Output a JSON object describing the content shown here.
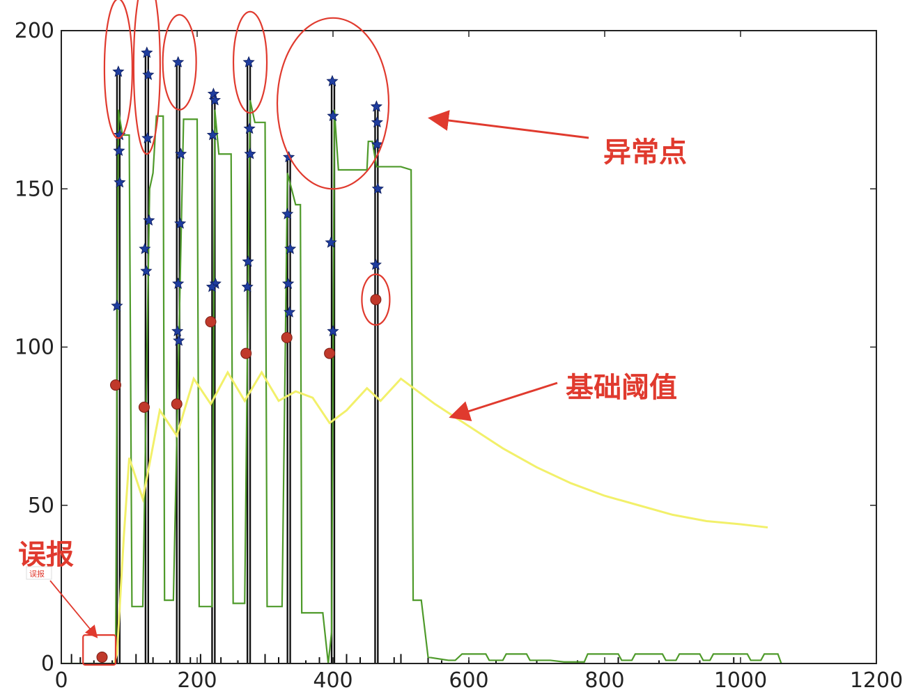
{
  "chart_data": {
    "type": "line",
    "xlim": [
      0,
      1200
    ],
    "ylim": [
      0,
      200
    ],
    "x_ticks": [
      0,
      200,
      400,
      600,
      800,
      1000,
      1200
    ],
    "y_ticks": [
      0,
      50,
      100,
      150,
      200
    ],
    "grid": false,
    "series": [
      {
        "color": "#111111",
        "style": "spikes",
        "segments": [
          [
            [
              82,
              0
            ],
            [
              82,
              187
            ],
            [
              86,
              187
            ],
            [
              86,
              0
            ]
          ],
          [
            [
              124,
              0
            ],
            [
              124,
              193
            ],
            [
              128,
              193
            ],
            [
              128,
              0
            ]
          ],
          [
            [
              170,
              0
            ],
            [
              170,
              190
            ],
            [
              174,
              190
            ],
            [
              174,
              0
            ]
          ],
          [
            [
              222,
              0
            ],
            [
              222,
              180
            ],
            [
              226,
              180
            ],
            [
              226,
              0
            ]
          ],
          [
            [
              274,
              0
            ],
            [
              274,
              190
            ],
            [
              278,
              190
            ],
            [
              278,
              0
            ]
          ],
          [
            [
              333,
              0
            ],
            [
              333,
              160
            ],
            [
              337,
              160
            ],
            [
              337,
              0
            ]
          ],
          [
            [
              398,
              0
            ],
            [
              398,
              184
            ],
            [
              402,
              184
            ],
            [
              402,
              0
            ]
          ],
          [
            [
              462,
              0
            ],
            [
              462,
              176
            ],
            [
              466,
              176
            ],
            [
              466,
              0
            ]
          ]
        ],
        "noise_x": [
          15,
          28,
          48,
          60,
          75,
          110,
          135,
          160,
          190,
          205,
          235,
          260,
          300,
          320,
          360,
          380,
          420,
          440,
          490,
          500,
          540,
          560,
          600,
          640,
          700,
          760,
          820,
          880,
          940,
          990
        ],
        "noise_y": [
          3,
          2,
          1,
          2,
          1,
          3,
          2,
          1,
          2,
          3,
          2,
          1,
          3,
          2,
          1,
          2,
          3,
          2,
          2,
          3,
          2,
          1,
          1,
          1,
          1,
          1,
          2,
          1,
          1,
          2
        ]
      },
      {
        "color": "#4e9a2a",
        "style": "line",
        "points": [
          [
            0,
            0
          ],
          [
            78,
            0
          ],
          [
            80,
            2
          ],
          [
            84,
            175
          ],
          [
            90,
            167
          ],
          [
            100,
            167
          ],
          [
            104,
            18
          ],
          [
            120,
            18
          ],
          [
            130,
            150
          ],
          [
            135,
            155
          ],
          [
            140,
            173
          ],
          [
            150,
            173
          ],
          [
            152,
            20
          ],
          [
            165,
            20
          ],
          [
            180,
            172
          ],
          [
            200,
            172
          ],
          [
            203,
            18
          ],
          [
            222,
            18
          ],
          [
            226,
            175
          ],
          [
            232,
            161
          ],
          [
            250,
            161
          ],
          [
            253,
            19
          ],
          [
            270,
            19
          ],
          [
            278,
            178
          ],
          [
            285,
            171
          ],
          [
            300,
            171
          ],
          [
            303,
            18
          ],
          [
            325,
            18
          ],
          [
            333,
            155
          ],
          [
            345,
            145
          ],
          [
            352,
            145
          ],
          [
            354,
            16
          ],
          [
            385,
            16
          ],
          [
            393,
            0
          ],
          [
            398,
            10
          ],
          [
            402,
            175
          ],
          [
            408,
            156
          ],
          [
            450,
            156
          ],
          [
            452,
            165
          ],
          [
            458,
            165
          ],
          [
            464,
            157
          ],
          [
            470,
            157
          ],
          [
            500,
            157
          ],
          [
            515,
            156
          ],
          [
            518,
            20
          ],
          [
            530,
            20
          ],
          [
            540,
            2
          ],
          [
            570,
            1
          ],
          [
            580,
            1
          ],
          [
            590,
            3
          ],
          [
            625,
            3
          ],
          [
            630,
            1
          ],
          [
            650,
            1
          ],
          [
            655,
            3
          ],
          [
            685,
            3
          ],
          [
            690,
            1
          ],
          [
            720,
            1
          ],
          [
            740,
            0.5
          ],
          [
            770,
            0.5
          ],
          [
            775,
            3
          ],
          [
            820,
            3
          ],
          [
            825,
            1
          ],
          [
            840,
            1
          ],
          [
            845,
            3
          ],
          [
            885,
            3
          ],
          [
            890,
            1
          ],
          [
            905,
            1
          ],
          [
            910,
            3
          ],
          [
            940,
            3
          ],
          [
            945,
            1
          ],
          [
            955,
            1
          ],
          [
            960,
            3
          ],
          [
            1010,
            3
          ],
          [
            1015,
            1
          ],
          [
            1030,
            1
          ],
          [
            1035,
            3
          ],
          [
            1055,
            3
          ],
          [
            1060,
            0
          ]
        ]
      },
      {
        "color": "#f2f06a",
        "style": "line",
        "points": [
          [
            78,
            0
          ],
          [
            82,
            3
          ],
          [
            92,
            40
          ],
          [
            100,
            65
          ],
          [
            120,
            52
          ],
          [
            145,
            80
          ],
          [
            170,
            72
          ],
          [
            195,
            90
          ],
          [
            220,
            82
          ],
          [
            245,
            92
          ],
          [
            270,
            83
          ],
          [
            295,
            92
          ],
          [
            320,
            83
          ],
          [
            345,
            86
          ],
          [
            370,
            84
          ],
          [
            395,
            76
          ],
          [
            420,
            80
          ],
          [
            450,
            87
          ],
          [
            470,
            83
          ],
          [
            500,
            90
          ],
          [
            550,
            82
          ],
          [
            600,
            75
          ],
          [
            650,
            68
          ],
          [
            700,
            62
          ],
          [
            750,
            57
          ],
          [
            800,
            53
          ],
          [
            850,
            50
          ],
          [
            900,
            47
          ],
          [
            950,
            45
          ],
          [
            1000,
            44
          ],
          [
            1040,
            43
          ]
        ]
      }
    ],
    "star_markers": {
      "color": "#1f3d9e",
      "points": [
        [
          84,
          187
        ],
        [
          86,
          167
        ],
        [
          85,
          162
        ],
        [
          86,
          152
        ],
        [
          82,
          113
        ],
        [
          126,
          193
        ],
        [
          128,
          186
        ],
        [
          127,
          166
        ],
        [
          129,
          140
        ],
        [
          123,
          131
        ],
        [
          125,
          124
        ],
        [
          172,
          190
        ],
        [
          176,
          161
        ],
        [
          175,
          139
        ],
        [
          172,
          120
        ],
        [
          171,
          105
        ],
        [
          173,
          102
        ],
        [
          224,
          180
        ],
        [
          226,
          178
        ],
        [
          223,
          167
        ],
        [
          227,
          120
        ],
        [
          222,
          119
        ],
        [
          276,
          190
        ],
        [
          277,
          169
        ],
        [
          278,
          161
        ],
        [
          275,
          127
        ],
        [
          274,
          119
        ],
        [
          335,
          160
        ],
        [
          333,
          142
        ],
        [
          337,
          131
        ],
        [
          334,
          120
        ],
        [
          336,
          111
        ],
        [
          399,
          184
        ],
        [
          400,
          173
        ],
        [
          397,
          133
        ],
        [
          400,
          105
        ],
        [
          464,
          176
        ],
        [
          465,
          171
        ],
        [
          465,
          164
        ],
        [
          466,
          150
        ],
        [
          463,
          126
        ]
      ]
    },
    "circle_markers": {
      "color": "#c0392b",
      "points": [
        [
          60,
          2
        ],
        [
          80,
          88
        ],
        [
          122,
          81
        ],
        [
          170,
          82
        ],
        [
          220,
          108
        ],
        [
          272,
          98
        ],
        [
          332,
          103
        ],
        [
          395,
          98
        ],
        [
          463,
          115
        ]
      ]
    },
    "annotations": [
      {
        "text": "异常点"
      },
      {
        "text": "基础阈值"
      },
      {
        "text": "误报"
      },
      {
        "text": "误报"
      }
    ]
  }
}
